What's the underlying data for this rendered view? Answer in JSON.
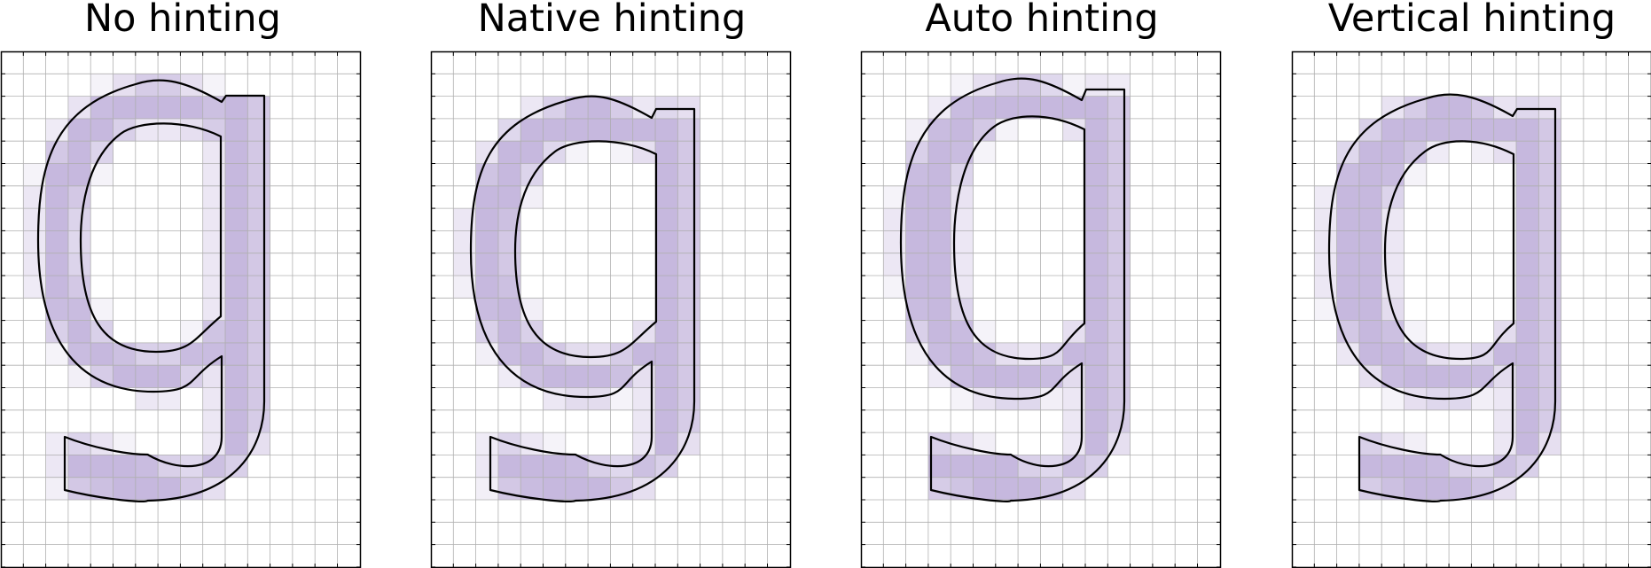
{
  "figure": {
    "colors": {
      "pixel_fill": "#7b5bb2",
      "grid_line": "#b0b0b0",
      "frame": "#000000",
      "outline": "#000000",
      "background": "#ffffff"
    },
    "panels": [
      {
        "title": "No hinting",
        "glyph_char": "g"
      },
      {
        "title": "Native hinting",
        "glyph_char": "g"
      },
      {
        "title": "Auto hinting",
        "glyph_char": "g"
      },
      {
        "title": "Vertical hinting",
        "glyph_char": "g"
      }
    ]
  }
}
